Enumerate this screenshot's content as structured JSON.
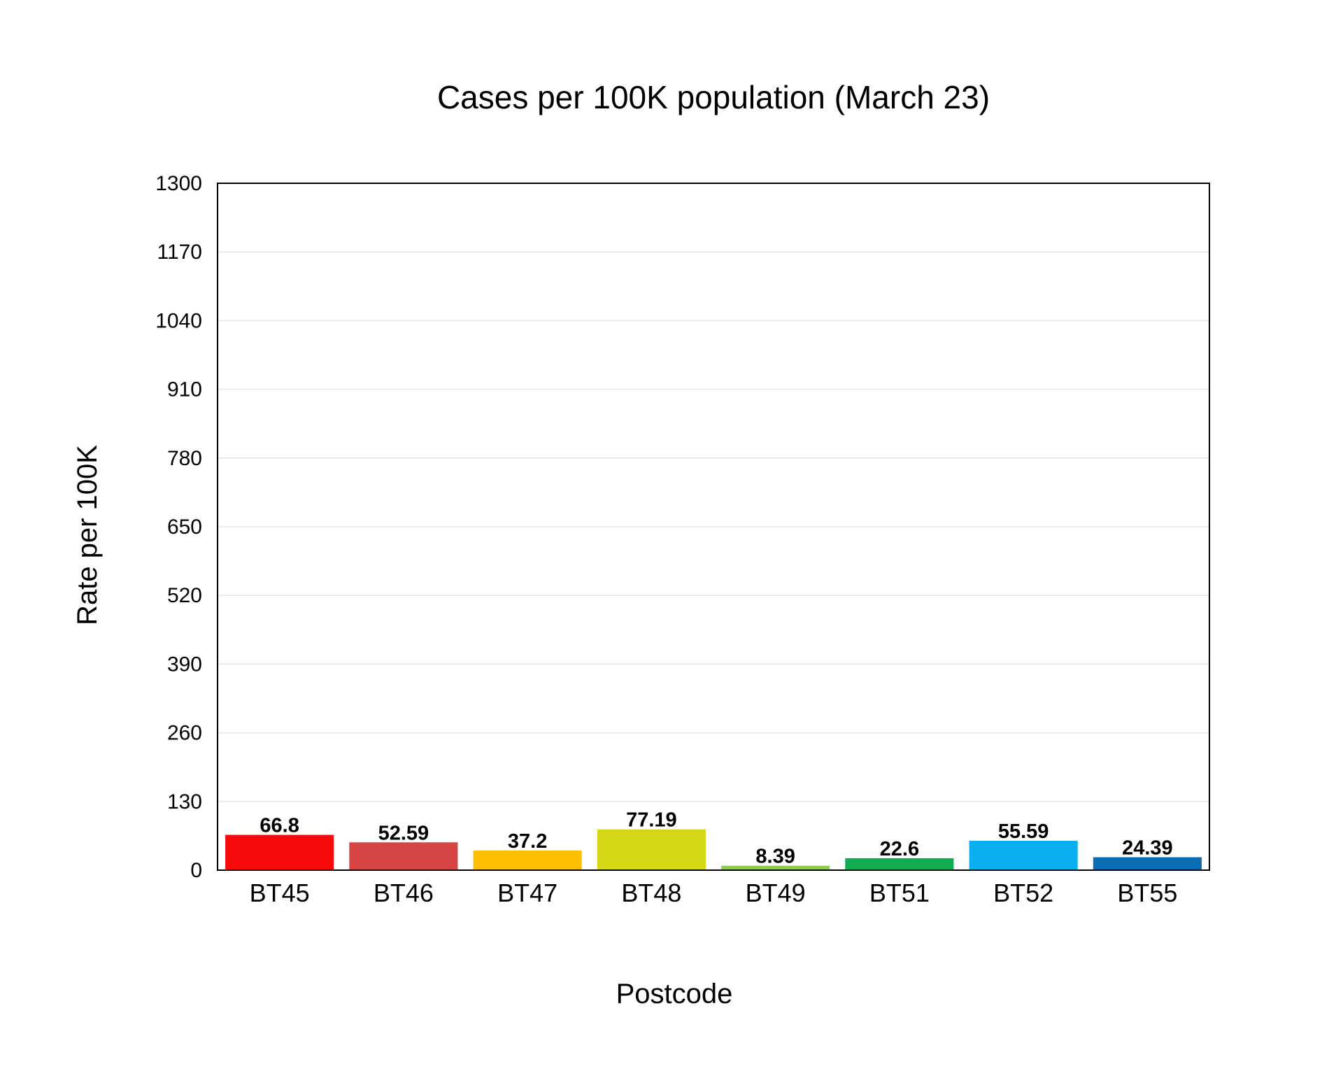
{
  "chart_data": {
    "type": "bar",
    "title": "Cases per 100K population (March 23)",
    "xlabel": "Postcode",
    "ylabel": "Rate per 100K",
    "categories": [
      "BT45",
      "BT46",
      "BT47",
      "BT48",
      "BT49",
      "BT51",
      "BT52",
      "BT55"
    ],
    "values": [
      66.8,
      52.59,
      37.2,
      77.19,
      8.39,
      22.6,
      55.59,
      24.39
    ],
    "value_labels": [
      "66.8",
      "52.59",
      "37.2",
      "77.19",
      "8.39",
      "22.6",
      "55.59",
      "24.39"
    ],
    "colors": [
      "#f90a0a",
      "#d64545",
      "#fdbf00",
      "#d4d714",
      "#8ccc4e",
      "#10ad52",
      "#0aaff0",
      "#0a6cb2"
    ],
    "ylim": [
      0,
      1300
    ],
    "yticks": [
      0,
      130,
      260,
      390,
      520,
      650,
      780,
      910,
      1040,
      1170,
      1300
    ],
    "grid": true,
    "legend": "none"
  }
}
